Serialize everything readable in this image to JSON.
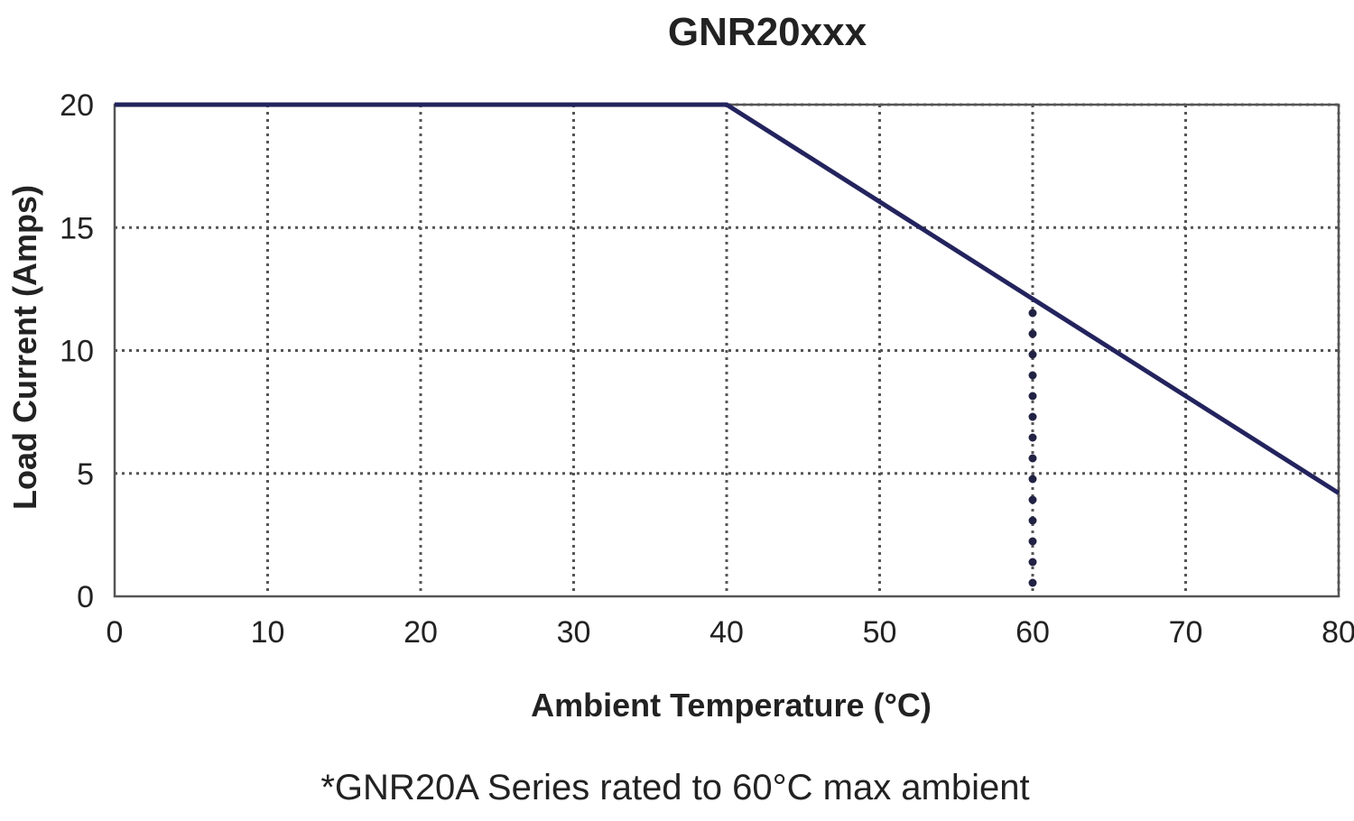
{
  "chart_data": {
    "type": "line",
    "title": "GNR20xxx",
    "xlabel": "Ambient Temperature (°C)",
    "ylabel": "Load Current (Amps)",
    "xlim": [
      0,
      80
    ],
    "ylim": [
      0,
      20
    ],
    "x_ticks": [
      0,
      10,
      20,
      30,
      40,
      50,
      60,
      70,
      80
    ],
    "y_ticks": [
      0,
      5,
      10,
      15,
      20
    ],
    "grid": true,
    "series": [
      {
        "x": [
          0,
          40,
          80
        ],
        "y": [
          20,
          20,
          4.2
        ],
        "color": "#23235e"
      }
    ],
    "annotations": [
      {
        "type": "vertical-dotted-line",
        "x": 60,
        "y_from": 0,
        "y_to": 12.1
      }
    ],
    "footnote": "*GNR20A Series rated to 60°C max ambient"
  }
}
